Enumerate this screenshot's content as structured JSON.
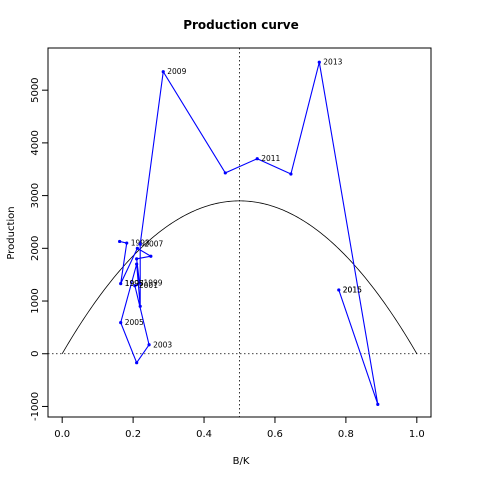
{
  "chart_data": {
    "type": "line",
    "title": "Production curve",
    "xlabel": "B/K",
    "ylabel": "Production",
    "xlim": [
      -0.04,
      1.04
    ],
    "ylim": [
      -1200,
      5800
    ],
    "xticks": [
      0.0,
      0.2,
      0.4,
      0.6,
      0.8,
      1.0
    ],
    "xtick_labels": [
      "0.0",
      "0.2",
      "0.4",
      "0.6",
      "0.8",
      "1.0"
    ],
    "yticks": [
      -1000,
      0,
      1000,
      2000,
      3000,
      4000,
      5000
    ],
    "ytick_labels": [
      "-1000",
      "0",
      "1000",
      "2000",
      "3000",
      "4000",
      "5000"
    ],
    "grid": false,
    "reference_lines": {
      "vertical_x": 0.5,
      "horizontal_y": 0
    },
    "curve": {
      "type": "parabola",
      "formula": "4 * 2900 * x * (1 - x)",
      "peak": 2900,
      "color": "#000000"
    },
    "series": [
      {
        "color": "#0000ff",
        "points": [
          {
            "x": 0.162,
            "y": 2130,
            "label": ""
          },
          {
            "x": 0.182,
            "y": 2100,
            "label": "1993"
          },
          {
            "x": 0.165,
            "y": 1330,
            "label": ""
          },
          {
            "x": 0.212,
            "y": 2000,
            "label": ""
          },
          {
            "x": 0.25,
            "y": 1850,
            "label": ""
          },
          {
            "x": 0.21,
            "y": 1800,
            "label": ""
          },
          {
            "x": 0.218,
            "y": 1340,
            "label": "1999"
          },
          {
            "x": 0.205,
            "y": 1290,
            "label": "2001"
          },
          {
            "x": 0.245,
            "y": 170,
            "label": "2003"
          },
          {
            "x": 0.21,
            "y": -170,
            "label": ""
          },
          {
            "x": 0.165,
            "y": 590,
            "label": "2005"
          },
          {
            "x": 0.21,
            "y": 1700,
            "label": ""
          },
          {
            "x": 0.22,
            "y": 900,
            "label": ""
          },
          {
            "x": 0.22,
            "y": 2080,
            "label": "2007"
          },
          {
            "x": 0.285,
            "y": 5350,
            "label": "2009"
          },
          {
            "x": 0.46,
            "y": 3430,
            "label": ""
          },
          {
            "x": 0.55,
            "y": 3700,
            "label": "2011"
          },
          {
            "x": 0.645,
            "y": 3410,
            "label": ""
          },
          {
            "x": 0.725,
            "y": 5530,
            "label": "2013"
          },
          {
            "x": 0.89,
            "y": -960,
            "label": ""
          },
          {
            "x": 0.78,
            "y": 1210,
            "label": "2015"
          }
        ]
      }
    ],
    "extra_labels": [
      {
        "x": 0.165,
        "y": 1330,
        "text": "1995"
      },
      {
        "x": 0.165,
        "y": 1330,
        "text": "1997"
      },
      {
        "x": 0.78,
        "y": 1210,
        "text": "2015"
      }
    ]
  }
}
